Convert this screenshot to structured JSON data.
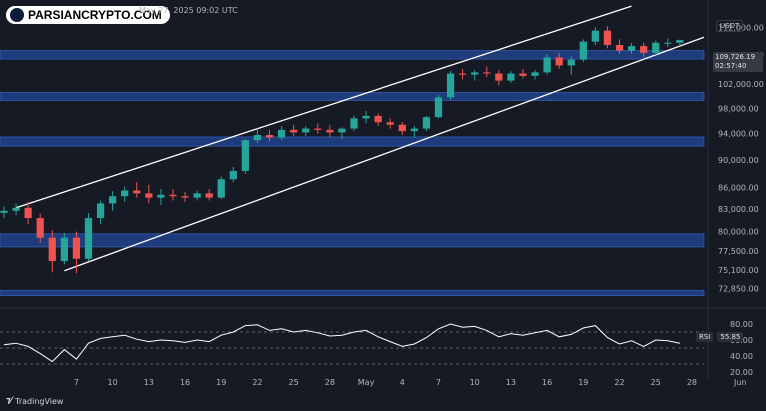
{
  "header": {
    "logo_text": "PARSIANCRYPTO.COM",
    "timestamp": "May 27, 2025 09:02 UTC",
    "currency": "USDT"
  },
  "price_tag": {
    "price": "109,726.19",
    "countdown": "02:57:40"
  },
  "rsi_tag": {
    "label": "RSI",
    "value": "55.85"
  },
  "footer": {
    "brand": "TradingView",
    "brand_icon": "tradingview-logo-icon"
  },
  "colors": {
    "background": "#161a25",
    "zone_fill": "#2451b7",
    "candle_up": "#26a69a",
    "candle_down": "#ef5350",
    "channel_line": "#ffffff",
    "rsi_line": "#ffffff"
  },
  "chart_data": [
    {
      "type": "candlestick",
      "panel": "price",
      "title": "",
      "ylim": [
        71000,
        114500
      ],
      "xlim": [
        0,
        58
      ],
      "y_scale": "log",
      "y_ticks": [
        112000,
        107000,
        102000,
        98000,
        94000,
        90000,
        86000,
        83000,
        80000,
        77500,
        75100,
        72850
      ],
      "x_ticks": [
        {
          "label": "7",
          "x": 6
        },
        {
          "label": "10",
          "x": 9
        },
        {
          "label": "13",
          "x": 12
        },
        {
          "label": "16",
          "x": 15
        },
        {
          "label": "19",
          "x": 18
        },
        {
          "label": "22",
          "x": 21
        },
        {
          "label": "25",
          "x": 24
        },
        {
          "label": "28",
          "x": 27
        },
        {
          "label": "May",
          "x": 30
        },
        {
          "label": "4",
          "x": 33
        },
        {
          "label": "7",
          "x": 36
        },
        {
          "label": "10",
          "x": 39
        },
        {
          "label": "13",
          "x": 42
        },
        {
          "label": "16",
          "x": 45
        },
        {
          "label": "19",
          "x": 48
        },
        {
          "label": "22",
          "x": 51
        },
        {
          "label": "25",
          "x": 54
        },
        {
          "label": "28",
          "x": 57
        },
        {
          "label": "Jun",
          "x": 61
        }
      ],
      "zones": [
        {
          "low": 106300,
          "high": 107800
        },
        {
          "low": 99300,
          "high": 100600
        },
        {
          "low": 92100,
          "high": 93500
        },
        {
          "low": 78000,
          "high": 79700
        },
        {
          "low": 72000,
          "high": 72600
        }
      ],
      "channel_lines": [
        {
          "x1": 1,
          "y1": 83200,
          "x2": 52,
          "y2": 116000
        },
        {
          "x1": 5,
          "y1": 75000,
          "x2": 58,
          "y2": 110200
        }
      ],
      "candles": [
        [
          0,
          82500,
          83400,
          81800,
          82800
        ],
        [
          1,
          82800,
          83800,
          82200,
          83200
        ],
        [
          2,
          83200,
          84000,
          81000,
          81800
        ],
        [
          3,
          81800,
          82400,
          78500,
          79200
        ],
        [
          4,
          79200,
          80200,
          74800,
          76200
        ],
        [
          5,
          76200,
          79800,
          75800,
          79200
        ],
        [
          6,
          79200,
          80000,
          74700,
          76500
        ],
        [
          7,
          76500,
          82500,
          76200,
          81800
        ],
        [
          8,
          81800,
          84200,
          81000,
          83800
        ],
        [
          9,
          83800,
          85500,
          82800,
          84800
        ],
        [
          10,
          84800,
          86200,
          84000,
          85600
        ],
        [
          11,
          85600,
          86800,
          84600,
          85200
        ],
        [
          12,
          85200,
          86400,
          83800,
          84600
        ],
        [
          13,
          84600,
          85800,
          83600,
          85000
        ],
        [
          14,
          85000,
          85800,
          84200,
          84800
        ],
        [
          15,
          84800,
          85400,
          84000,
          84600
        ],
        [
          16,
          84600,
          85600,
          84200,
          85200
        ],
        [
          17,
          85200,
          85800,
          84200,
          84600
        ],
        [
          18,
          84600,
          87600,
          84400,
          87200
        ],
        [
          19,
          87200,
          89000,
          86800,
          88400
        ],
        [
          20,
          88400,
          93200,
          88000,
          93000
        ],
        [
          21,
          93000,
          94800,
          92600,
          93800
        ],
        [
          22,
          93800,
          94600,
          92800,
          93400
        ],
        [
          23,
          93400,
          95200,
          93000,
          94600
        ],
        [
          24,
          94600,
          95400,
          93600,
          94200
        ],
        [
          25,
          94200,
          95200,
          93600,
          94800
        ],
        [
          26,
          94800,
          95600,
          94000,
          94600
        ],
        [
          27,
          94600,
          95400,
          93400,
          94200
        ],
        [
          28,
          94200,
          95000,
          93200,
          94800
        ],
        [
          29,
          94800,
          96800,
          94400,
          96400
        ],
        [
          30,
          96400,
          97600,
          95600,
          96800
        ],
        [
          31,
          96800,
          97200,
          95200,
          95800
        ],
        [
          32,
          95800,
          96400,
          94800,
          95400
        ],
        [
          33,
          95400,
          95800,
          93800,
          94400
        ],
        [
          34,
          94400,
          95200,
          93400,
          94800
        ],
        [
          35,
          94800,
          96800,
          94400,
          96600
        ],
        [
          36,
          96600,
          100200,
          96400,
          99800
        ],
        [
          37,
          99800,
          104200,
          99400,
          103800
        ],
        [
          38,
          103800,
          104600,
          102800,
          103600
        ],
        [
          39,
          103600,
          104400,
          102600,
          104000
        ],
        [
          40,
          104000,
          105000,
          103200,
          103800
        ],
        [
          41,
          103800,
          104400,
          101800,
          102600
        ],
        [
          42,
          102600,
          104200,
          102200,
          103800
        ],
        [
          43,
          103800,
          104600,
          103000,
          103400
        ],
        [
          44,
          103400,
          104400,
          102800,
          104000
        ],
        [
          45,
          104000,
          107200,
          103600,
          106600
        ],
        [
          46,
          106600,
          107400,
          104600,
          105200
        ],
        [
          47,
          105200,
          106800,
          103600,
          106200
        ],
        [
          48,
          106200,
          109800,
          105800,
          109400
        ],
        [
          49,
          109400,
          112000,
          108800,
          111400
        ],
        [
          50,
          111400,
          112200,
          108200,
          108800
        ],
        [
          51,
          108800,
          109800,
          107200,
          107800
        ],
        [
          52,
          107800,
          109200,
          107200,
          108600
        ],
        [
          53,
          108600,
          109200,
          106600,
          107400
        ],
        [
          54,
          107400,
          109600,
          107000,
          109200
        ],
        [
          55,
          109200,
          110000,
          108400,
          109200
        ],
        [
          56,
          109200,
          109800,
          108600,
          109700
        ]
      ]
    },
    {
      "type": "line",
      "panel": "rsi",
      "title": "",
      "series": [
        {
          "name": "RSI",
          "values": [
            54,
            56,
            52,
            43,
            33,
            48,
            36,
            56,
            62,
            64,
            66,
            61,
            58,
            60,
            59,
            57,
            60,
            58,
            66,
            70,
            78,
            79,
            72,
            74,
            70,
            72,
            69,
            65,
            66,
            70,
            72,
            64,
            58,
            52,
            55,
            63,
            74,
            80,
            76,
            77,
            72,
            64,
            68,
            66,
            69,
            72,
            64,
            67,
            75,
            78,
            63,
            55,
            59,
            52,
            60,
            59,
            56
          ]
        }
      ],
      "x": [
        0,
        1,
        2,
        3,
        4,
        5,
        6,
        7,
        8,
        9,
        10,
        11,
        12,
        13,
        14,
        15,
        16,
        17,
        18,
        19,
        20,
        21,
        22,
        23,
        24,
        25,
        26,
        27,
        28,
        29,
        30,
        31,
        32,
        33,
        34,
        35,
        36,
        37,
        38,
        39,
        40,
        41,
        42,
        43,
        44,
        45,
        46,
        47,
        48,
        49,
        50,
        51,
        52,
        53,
        54,
        55,
        56
      ],
      "ylim": [
        15,
        95
      ],
      "y_ticks": [
        80,
        60,
        40,
        20
      ],
      "guide_levels": [
        70,
        50,
        30
      ]
    }
  ]
}
